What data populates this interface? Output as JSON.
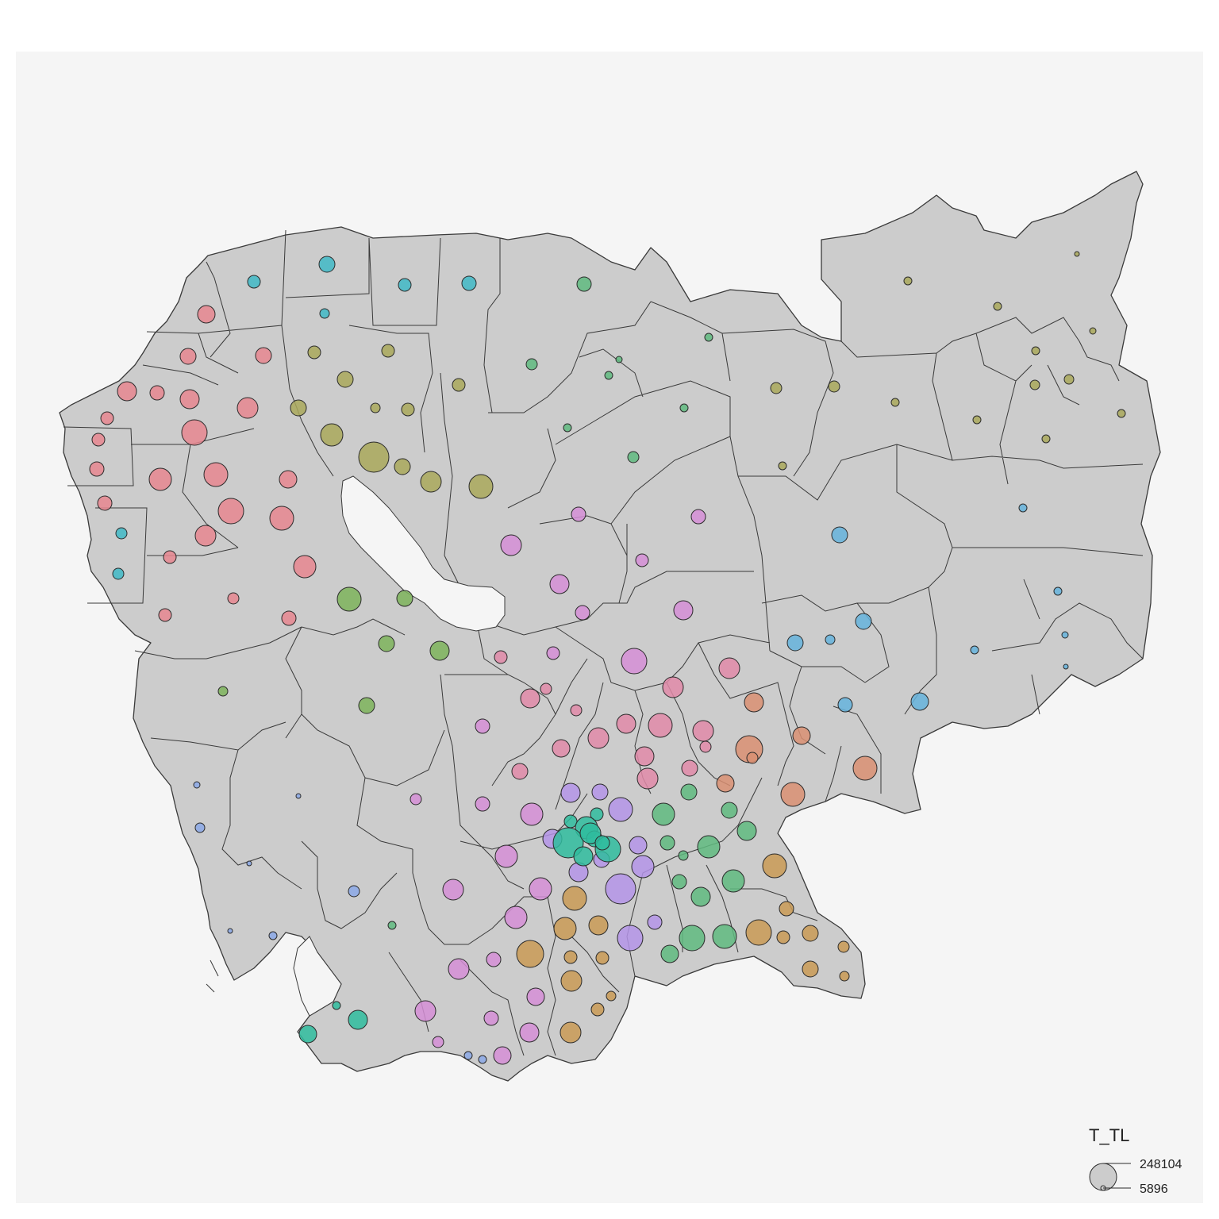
{
  "legend": {
    "title": "T_TL",
    "max_label": "248104",
    "min_label": "5896"
  },
  "colors": {
    "background": "#f5f5f5",
    "land": "#cccccc",
    "border": "#3a3a3a",
    "palette": [
      "#e6868f",
      "#3fb8c5",
      "#a9a85a",
      "#5fba7f",
      "#d98f72",
      "#d58ed6",
      "#b494e8",
      "#65b3dc",
      "#8ba8e6",
      "#2fbc9e",
      "#c99a55",
      "#e08aa8",
      "#7db35b"
    ]
  }
}
